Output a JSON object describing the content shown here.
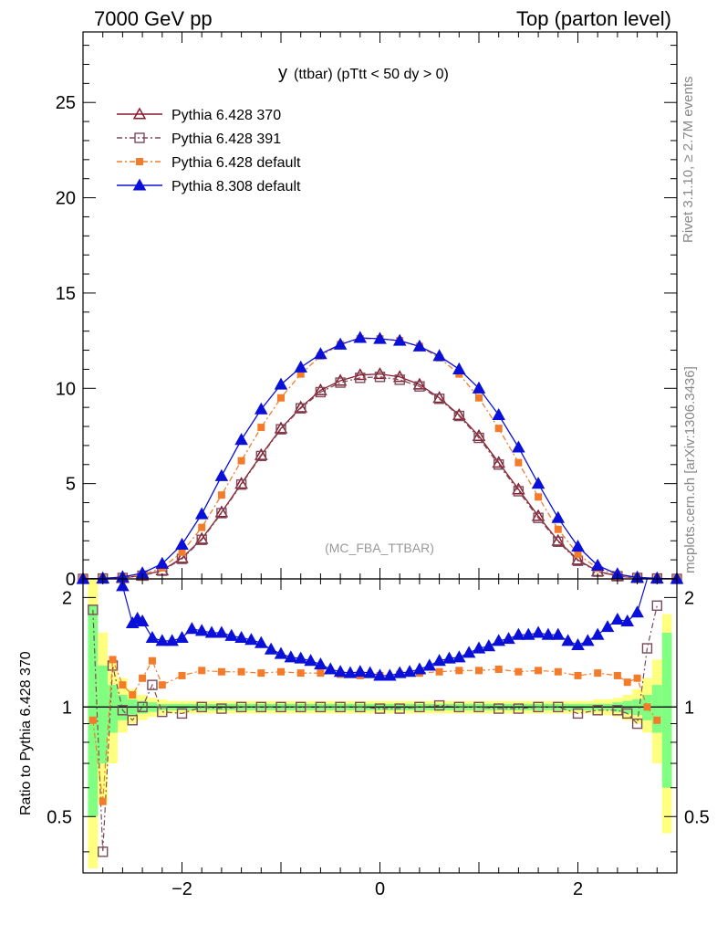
{
  "header": {
    "left": "7000 GeV pp",
    "right": "Top (parton level)"
  },
  "side": {
    "rivet": "Rivet 3.1.10, ≥ 2.7M events",
    "mcplots": "mcplots.cern.ch [arXiv:1306.3436]"
  },
  "chart_data": [
    {
      "type": "line",
      "title_main": "y",
      "title_rest": "(ttbar) (pTtt < 50 dy > 0)",
      "watermark": "(MC_FBA_TTBAR)",
      "xlim": [
        -3.0,
        3.0
      ],
      "ylim": [
        0,
        28.7
      ],
      "yticks": [
        0,
        5,
        10,
        15,
        20,
        25
      ],
      "grid": false,
      "legend_position": "top-left",
      "series": [
        {
          "name": "Pythia 6.428 370",
          "color": "#8b1a2b",
          "marker": "triangle-open",
          "x": [
            -3.0,
            -2.8,
            -2.6,
            -2.4,
            -2.2,
            -2.0,
            -1.8,
            -1.6,
            -1.4,
            -1.2,
            -1.0,
            -0.8,
            -0.6,
            -0.4,
            -0.2,
            0.0,
            0.2,
            0.4,
            0.6,
            0.8,
            1.0,
            1.2,
            1.4,
            1.6,
            1.8,
            2.0,
            2.2,
            2.4,
            2.6,
            2.8,
            3.0
          ],
          "values": [
            0.0,
            0.02,
            0.05,
            0.18,
            0.45,
            1.1,
            2.1,
            3.5,
            5.0,
            6.5,
            7.9,
            9.0,
            9.9,
            10.4,
            10.7,
            10.75,
            10.6,
            10.2,
            9.5,
            8.6,
            7.5,
            6.1,
            4.7,
            3.3,
            2.0,
            1.0,
            0.4,
            0.15,
            0.05,
            0.02,
            0.0
          ]
        },
        {
          "name": "Pythia 6.428 391",
          "color": "#7b4b5b",
          "marker": "square-open",
          "x": [
            -3.0,
            -2.8,
            -2.6,
            -2.4,
            -2.2,
            -2.0,
            -1.8,
            -1.6,
            -1.4,
            -1.2,
            -1.0,
            -0.8,
            -0.6,
            -0.4,
            -0.2,
            0.0,
            0.2,
            0.4,
            0.6,
            0.8,
            1.0,
            1.2,
            1.4,
            1.6,
            1.8,
            2.0,
            2.2,
            2.4,
            2.6,
            2.8,
            3.0
          ],
          "values": [
            0.0,
            0.02,
            0.05,
            0.17,
            0.43,
            1.05,
            2.05,
            3.45,
            4.95,
            6.45,
            7.85,
            8.95,
            9.8,
            10.3,
            10.55,
            10.6,
            10.45,
            10.1,
            9.45,
            8.55,
            7.4,
            6.0,
            4.6,
            3.2,
            1.95,
            0.95,
            0.38,
            0.14,
            0.05,
            0.02,
            0.0
          ]
        },
        {
          "name": "Pythia 6.428 default",
          "color": "#f47b2a",
          "marker": "square-filled",
          "x": [
            -3.0,
            -2.8,
            -2.6,
            -2.4,
            -2.2,
            -2.0,
            -1.8,
            -1.6,
            -1.4,
            -1.2,
            -1.0,
            -0.8,
            -0.6,
            -0.4,
            -0.2,
            0.0,
            0.2,
            0.4,
            0.6,
            0.8,
            1.0,
            1.2,
            1.4,
            1.6,
            1.8,
            2.0,
            2.2,
            2.4,
            2.6,
            2.8,
            3.0
          ],
          "values": [
            0.0,
            0.02,
            0.06,
            0.22,
            0.58,
            1.4,
            2.7,
            4.4,
            6.2,
            7.95,
            9.5,
            10.75,
            11.7,
            12.3,
            12.6,
            12.6,
            12.5,
            12.2,
            11.6,
            10.75,
            9.5,
            7.9,
            6.1,
            4.3,
            2.6,
            1.3,
            0.55,
            0.2,
            0.06,
            0.02,
            0.0
          ]
        },
        {
          "name": "Pythia 8.308 default",
          "color": "#0a10d8",
          "marker": "triangle-filled",
          "x": [
            -3.0,
            -2.8,
            -2.6,
            -2.4,
            -2.2,
            -2.0,
            -1.8,
            -1.6,
            -1.4,
            -1.2,
            -1.0,
            -0.8,
            -0.6,
            -0.4,
            -0.2,
            0.0,
            0.2,
            0.4,
            0.6,
            0.8,
            1.0,
            1.2,
            1.4,
            1.6,
            1.8,
            2.0,
            2.2,
            2.4,
            2.6,
            2.8,
            3.0
          ],
          "values": [
            0.0,
            0.03,
            0.1,
            0.3,
            0.8,
            1.8,
            3.4,
            5.4,
            7.3,
            8.9,
            10.2,
            11.1,
            11.8,
            12.3,
            12.65,
            12.6,
            12.5,
            12.2,
            11.7,
            11.0,
            10.0,
            8.6,
            6.9,
            5.0,
            3.2,
            1.7,
            0.7,
            0.25,
            0.08,
            0.03,
            0.0
          ]
        }
      ]
    },
    {
      "type": "line",
      "ylabel": "Ratio to Pythia 6.428 370",
      "xlim": [
        -3.0,
        3.0
      ],
      "ylim": [
        0.35,
        2.25
      ],
      "yticks": [
        0.5,
        1,
        2
      ],
      "yticklabels": [
        "0.5",
        "1",
        "2"
      ],
      "xticks": [
        -2,
        0,
        2
      ],
      "xticklabels": [
        "−2",
        "0",
        "2"
      ],
      "reference": 1,
      "grid": false,
      "band_colors": [
        "#ffff80",
        "#80ff80"
      ],
      "series": [
        {
          "name": "Pythia 6.428 391",
          "color": "#7b4b5b",
          "marker": "square-open",
          "x": [
            -2.9,
            -2.8,
            -2.7,
            -2.6,
            -2.5,
            -2.4,
            -2.3,
            -2.2,
            -2.0,
            -1.8,
            -1.6,
            -1.4,
            -1.2,
            -1.0,
            -0.8,
            -0.6,
            -0.4,
            -0.2,
            0.0,
            0.2,
            0.4,
            0.6,
            0.8,
            1.0,
            1.2,
            1.4,
            1.6,
            1.8,
            2.0,
            2.2,
            2.4,
            2.5,
            2.6,
            2.7,
            2.8
          ],
          "values": [
            1.85,
            0.4,
            1.3,
            0.98,
            0.92,
            1.0,
            1.15,
            0.97,
            0.96,
            1.0,
            0.99,
            1.0,
            1.0,
            1.0,
            1.0,
            1.0,
            1.0,
            1.0,
            0.99,
            0.99,
            1.0,
            1.01,
            1.0,
            1.0,
            0.99,
            0.99,
            1.0,
            1.0,
            0.96,
            0.98,
            0.98,
            0.96,
            0.9,
            1.45,
            1.9
          ]
        },
        {
          "name": "Pythia 6.428 default",
          "color": "#f47b2a",
          "marker": "square-filled",
          "x": [
            -2.9,
            -2.8,
            -2.7,
            -2.6,
            -2.5,
            -2.4,
            -2.3,
            -2.2,
            -2.0,
            -1.8,
            -1.6,
            -1.4,
            -1.2,
            -1.0,
            -0.8,
            -0.6,
            -0.4,
            -0.2,
            0.0,
            0.2,
            0.4,
            0.6,
            0.8,
            1.0,
            1.2,
            1.4,
            1.6,
            1.8,
            2.0,
            2.2,
            2.4,
            2.5,
            2.6,
            2.7,
            2.8
          ],
          "values": [
            0.92,
            0.55,
            1.35,
            1.15,
            1.08,
            1.2,
            1.34,
            1.15,
            1.22,
            1.26,
            1.25,
            1.25,
            1.24,
            1.25,
            1.24,
            1.24,
            1.23,
            1.22,
            1.22,
            1.23,
            1.24,
            1.25,
            1.26,
            1.26,
            1.27,
            1.25,
            1.26,
            1.25,
            1.22,
            1.24,
            1.22,
            1.17,
            1.2,
            1.0,
            0.92
          ]
        },
        {
          "name": "Pythia 8.308 default",
          "color": "#0a10d8",
          "marker": "triangle-filled",
          "x": [
            -2.6,
            -2.5,
            -2.45,
            -2.4,
            -2.3,
            -2.2,
            -2.1,
            -2.0,
            -1.9,
            -1.8,
            -1.7,
            -1.6,
            -1.5,
            -1.4,
            -1.3,
            -1.2,
            -1.1,
            -1.0,
            -0.9,
            -0.8,
            -0.7,
            -0.6,
            -0.5,
            -0.4,
            -0.3,
            -0.2,
            -0.1,
            0.0,
            0.1,
            0.2,
            0.3,
            0.4,
            0.5,
            0.6,
            0.7,
            0.8,
            0.9,
            1.0,
            1.1,
            1.2,
            1.3,
            1.4,
            1.5,
            1.6,
            1.7,
            1.8,
            1.9,
            2.0,
            2.1,
            2.2,
            2.3,
            2.4,
            2.5,
            2.6,
            2.7
          ],
          "values": [
            2.15,
            1.7,
            1.75,
            1.72,
            1.55,
            1.52,
            1.52,
            1.55,
            1.64,
            1.62,
            1.6,
            1.6,
            1.57,
            1.55,
            1.53,
            1.5,
            1.44,
            1.4,
            1.37,
            1.36,
            1.34,
            1.31,
            1.27,
            1.25,
            1.24,
            1.25,
            1.24,
            1.22,
            1.22,
            1.24,
            1.25,
            1.27,
            1.3,
            1.34,
            1.36,
            1.37,
            1.41,
            1.45,
            1.47,
            1.52,
            1.54,
            1.58,
            1.58,
            1.6,
            1.58,
            1.58,
            1.52,
            1.48,
            1.52,
            1.58,
            1.66,
            1.74,
            1.72,
            1.82,
            2.3
          ]
        }
      ]
    }
  ]
}
